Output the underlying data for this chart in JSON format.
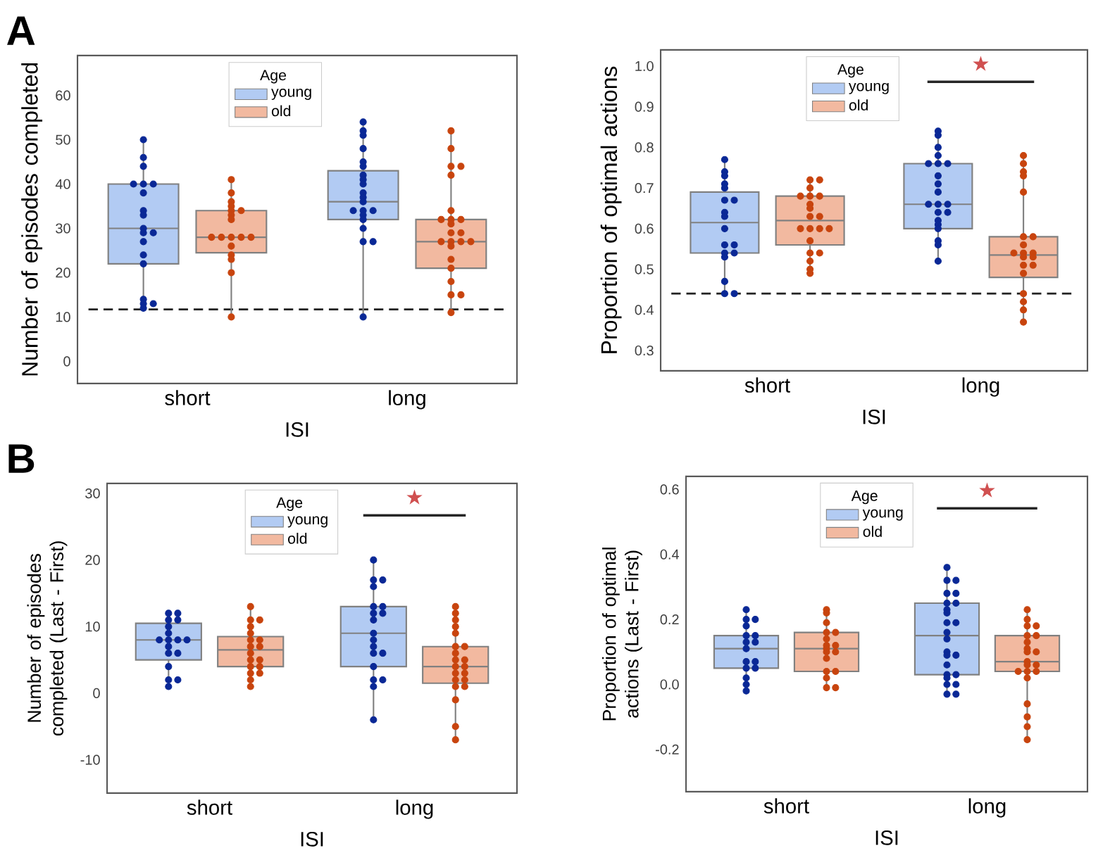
{
  "chart_data": [
    {
      "type": "box",
      "categories": [
        "short",
        "long"
      ],
      "xlabel": "ISI",
      "ylabel": "Number of episodes completed",
      "legend_title": "Age",
      "legend": "top",
      "marker": "circle",
      "ylim": [
        -5,
        69
      ],
      "yticks": [
        0,
        10,
        20,
        30,
        40,
        50,
        60
      ],
      "title": "A",
      "ref_lines": [
        {
          "axis": "y",
          "value": 11.7,
          "line_style": "dashed",
          "color": "#222222"
        }
      ],
      "series": [
        {
          "name": "young",
          "color": "#b2cbf3",
          "boxes": [
            {
              "low": 12,
              "q1": 22,
              "median": 30,
              "q3": 40,
              "high": 50
            },
            {
              "low": 10,
              "q1": 32,
              "median": 36,
              "q3": 43,
              "high": 54
            }
          ]
        },
        {
          "name": "old",
          "color": "#f2b9a0",
          "boxes": [
            {
              "low": 10,
              "q1": 24.5,
              "median": 28,
              "q3": 34,
              "high": 41
            },
            {
              "low": 11,
              "q1": 21,
              "median": 27,
              "q3": 32,
              "high": 52
            }
          ]
        },
        {
          "type": "scatter",
          "color": "#0a2896",
          "x": [
            "short",
            "short",
            "short",
            "short",
            "short",
            "short",
            "short",
            "short",
            "short",
            "short",
            "short",
            "short",
            "short",
            "short",
            "short",
            "short",
            "short",
            "short",
            "short",
            "long",
            "long",
            "long",
            "long",
            "long",
            "long",
            "long",
            "long",
            "long",
            "long",
            "long",
            "long",
            "long",
            "long",
            "long",
            "long",
            "long",
            "long",
            "long",
            "long",
            "long"
          ],
          "values": [
            50,
            46,
            44,
            40,
            40,
            40,
            38,
            34,
            33,
            30,
            29,
            29,
            27,
            24,
            22,
            14,
            13,
            13,
            12,
            54,
            52,
            51,
            48,
            45,
            44,
            42,
            41,
            40,
            38,
            37,
            36,
            34,
            34,
            34,
            33,
            32,
            30,
            27,
            27,
            10
          ]
        },
        {
          "type": "scatter",
          "color": "#c8440e",
          "x": [
            "short",
            "short",
            "short",
            "short",
            "short",
            "short",
            "short",
            "short",
            "short",
            "short",
            "short",
            "short",
            "short",
            "short",
            "short",
            "short",
            "short",
            "short",
            "long",
            "long",
            "long",
            "long",
            "long",
            "long",
            "long",
            "long",
            "long",
            "long",
            "long",
            "long",
            "long",
            "long",
            "long",
            "long",
            "long",
            "long",
            "long",
            "long",
            "long",
            "long",
            "long"
          ],
          "values": [
            41,
            38,
            36,
            35,
            34,
            34,
            33,
            32,
            28,
            28,
            28,
            28,
            28,
            26,
            24,
            23,
            20,
            10,
            52,
            48,
            44,
            44,
            42,
            34,
            32,
            32,
            32,
            31,
            29,
            29,
            27,
            27,
            27,
            27,
            26,
            23,
            21,
            18,
            15,
            15,
            11
          ]
        }
      ]
    },
    {
      "type": "box",
      "categories": [
        "short",
        "long"
      ],
      "xlabel": "ISI",
      "ylabel": "Proportion of optimal actions",
      "legend_title": "Age",
      "legend": "top",
      "marker": "circle",
      "ylim": [
        0.25,
        1.04
      ],
      "yticks": [
        0.3,
        0.4,
        0.5,
        0.6,
        0.7,
        0.8,
        0.9,
        {
          "value": 1.0,
          "label": "1.0"
        }
      ],
      "annotations": [
        "★"
      ],
      "ref_lines": [
        {
          "axis": "y",
          "value": 0.44,
          "line_style": "dashed",
          "color": "#222222"
        }
      ],
      "series": [
        {
          "name": "young",
          "color": "#b2cbf3",
          "boxes": [
            {
              "low": 0.44,
              "q1": 0.54,
              "median": 0.615,
              "q3": 0.69,
              "high": 0.77
            },
            {
              "low": 0.52,
              "q1": 0.6,
              "median": 0.66,
              "q3": 0.76,
              "high": 0.84
            }
          ]
        },
        {
          "name": "old",
          "color": "#f2b9a0",
          "boxes": [
            {
              "low": 0.49,
              "q1": 0.56,
              "median": 0.62,
              "q3": 0.68,
              "high": 0.72
            },
            {
              "low": 0.37,
              "q1": 0.48,
              "median": 0.535,
              "q3": 0.58,
              "high": 0.78
            }
          ]
        },
        {
          "type": "scatter",
          "color": "#0a2896",
          "x": [
            "short",
            "short",
            "short",
            "short",
            "short",
            "short",
            "short",
            "short",
            "short",
            "short",
            "short",
            "short",
            "short",
            "short",
            "short",
            "short",
            "short",
            "short",
            "long",
            "long",
            "long",
            "long",
            "long",
            "long",
            "long",
            "long",
            "long",
            "long",
            "long",
            "long",
            "long",
            "long",
            "long",
            "long",
            "long",
            "long",
            "long",
            "long",
            "long"
          ],
          "values": [
            0.77,
            0.74,
            0.73,
            0.71,
            0.7,
            0.67,
            0.67,
            0.64,
            0.63,
            0.6,
            0.56,
            0.56,
            0.54,
            0.54,
            0.53,
            0.47,
            0.44,
            0.44,
            0.84,
            0.83,
            0.8,
            0.78,
            0.76,
            0.76,
            0.76,
            0.73,
            0.71,
            0.69,
            0.66,
            0.66,
            0.66,
            0.64,
            0.64,
            0.62,
            0.61,
            0.6,
            0.57,
            0.56,
            0.52
          ]
        },
        {
          "type": "scatter",
          "color": "#c8440e",
          "x": [
            "short",
            "short",
            "short",
            "short",
            "short",
            "short",
            "short",
            "short",
            "short",
            "short",
            "short",
            "short",
            "short",
            "short",
            "short",
            "short",
            "short",
            "short",
            "short",
            "short",
            "long",
            "long",
            "long",
            "long",
            "long",
            "long",
            "long",
            "long",
            "long",
            "long",
            "long",
            "long",
            "long",
            "long",
            "long",
            "long",
            "long",
            "long",
            "long",
            "long"
          ],
          "values": [
            0.72,
            0.72,
            0.7,
            0.68,
            0.68,
            0.68,
            0.66,
            0.65,
            0.63,
            0.63,
            0.6,
            0.6,
            0.6,
            0.6,
            0.57,
            0.54,
            0.54,
            0.52,
            0.5,
            0.49,
            0.78,
            0.76,
            0.74,
            0.73,
            0.69,
            0.58,
            0.58,
            0.56,
            0.54,
            0.54,
            0.54,
            0.53,
            0.53,
            0.51,
            0.51,
            0.49,
            0.44,
            0.42,
            0.4,
            0.37
          ]
        }
      ]
    },
    {
      "type": "box",
      "categories": [
        "short",
        "long"
      ],
      "xlabel": "ISI",
      "ylabel": "Number of episodes completed (Last - First)",
      "legend_title": "Age",
      "legend": "top",
      "marker": "circle",
      "ylim": [
        -15,
        31.5
      ],
      "yticks": [
        -10,
        0,
        10,
        20,
        30
      ],
      "title": "B",
      "annotations": [
        "★"
      ],
      "series": [
        {
          "name": "young",
          "color": "#b2cbf3",
          "boxes": [
            {
              "low": 1,
              "q1": 5,
              "median": 8,
              "q3": 10.5,
              "high": 12
            },
            {
              "low": -4,
              "q1": 4,
              "median": 9,
              "q3": 13,
              "high": 20
            }
          ]
        },
        {
          "name": "old",
          "color": "#f2b9a0",
          "boxes": [
            {
              "low": 1,
              "q1": 4,
              "median": 6.5,
              "q3": 8.5,
              "high": 13
            },
            {
              "low": -7,
              "q1": 1.5,
              "median": 4,
              "q3": 7,
              "high": 13
            }
          ]
        },
        {
          "type": "scatter",
          "color": "#0a2896",
          "x": [
            "short",
            "short",
            "short",
            "short",
            "short",
            "short",
            "short",
            "short",
            "short",
            "short",
            "short",
            "short",
            "short",
            "short",
            "short",
            "short",
            "short",
            "long",
            "long",
            "long",
            "long",
            "long",
            "long",
            "long",
            "long",
            "long",
            "long",
            "long",
            "long",
            "long",
            "long",
            "long",
            "long",
            "long",
            "long",
            "long"
          ],
          "values": [
            12,
            12,
            11,
            11,
            10,
            9,
            8,
            8,
            8,
            8,
            7,
            6,
            6,
            4,
            2,
            2,
            1,
            20,
            17,
            17,
            16,
            13,
            13,
            12,
            12,
            11,
            9,
            8,
            7,
            6,
            6,
            4,
            2,
            2,
            1,
            -4
          ]
        },
        {
          "type": "scatter",
          "color": "#c8440e",
          "x": [
            "short",
            "short",
            "short",
            "short",
            "short",
            "short",
            "short",
            "short",
            "short",
            "short",
            "short",
            "short",
            "short",
            "short",
            "short",
            "short",
            "short",
            "short",
            "long",
            "long",
            "long",
            "long",
            "long",
            "long",
            "long",
            "long",
            "long",
            "long",
            "long",
            "long",
            "long",
            "long",
            "long",
            "long",
            "long",
            "long",
            "long",
            "long",
            "long"
          ],
          "values": [
            13,
            11,
            11,
            10,
            9,
            8,
            8,
            7,
            7,
            6,
            5,
            5,
            4,
            4,
            3,
            3,
            2,
            1,
            13,
            12,
            11,
            10,
            9,
            7,
            7,
            6,
            5,
            5,
            4,
            4,
            3,
            3,
            2,
            2,
            1,
            1,
            -1,
            -5,
            -7
          ]
        }
      ]
    },
    {
      "type": "box",
      "categories": [
        "short",
        "long"
      ],
      "xlabel": "ISI",
      "ylabel": "Proportion of optimal actions (Last - First)",
      "legend_title": "Age",
      "legend": "top",
      "marker": "circle",
      "ylim": [
        -0.33,
        0.64
      ],
      "yticks": [
        -0.2,
        {
          "value": 0.0,
          "label": "0.0"
        },
        0.2,
        0.4,
        0.6
      ],
      "annotations": [
        "★"
      ],
      "series": [
        {
          "name": "young",
          "color": "#b2cbf3",
          "boxes": [
            {
              "low": -0.02,
              "q1": 0.05,
              "median": 0.11,
              "q3": 0.15,
              "high": 0.23
            },
            {
              "low": -0.03,
              "q1": 0.03,
              "median": 0.15,
              "q3": 0.25,
              "high": 0.36
            }
          ]
        },
        {
          "name": "old",
          "color": "#f2b9a0",
          "boxes": [
            {
              "low": -0.01,
              "q1": 0.04,
              "median": 0.11,
              "q3": 0.16,
              "high": 0.23
            },
            {
              "low": -0.17,
              "q1": 0.04,
              "median": 0.07,
              "q3": 0.15,
              "high": 0.23
            }
          ]
        },
        {
          "type": "scatter",
          "color": "#0a2896",
          "x": [
            "short",
            "short",
            "short",
            "short",
            "short",
            "short",
            "short",
            "short",
            "short",
            "short",
            "short",
            "short",
            "short",
            "short",
            "short",
            "short",
            "long",
            "long",
            "long",
            "long",
            "long",
            "long",
            "long",
            "long",
            "long",
            "long",
            "long",
            "long",
            "long",
            "long",
            "long",
            "long",
            "long",
            "long",
            "long",
            "long",
            "long",
            "long",
            "long",
            "long"
          ],
          "values": [
            0.23,
            0.2,
            0.2,
            0.18,
            0.15,
            0.15,
            0.13,
            0.13,
            0.11,
            0.07,
            0.07,
            0.05,
            0.05,
            0.02,
            0.0,
            -0.02,
            0.36,
            0.32,
            0.32,
            0.28,
            0.28,
            0.25,
            0.25,
            0.23,
            0.22,
            0.19,
            0.19,
            0.16,
            0.14,
            0.1,
            0.09,
            0.09,
            0.06,
            0.03,
            0.03,
            0.02,
            0.0,
            0.0,
            -0.03,
            -0.03
          ]
        },
        {
          "type": "scatter",
          "color": "#c8440e",
          "x": [
            "short",
            "short",
            "short",
            "short",
            "short",
            "short",
            "short",
            "short",
            "short",
            "short",
            "short",
            "short",
            "short",
            "short",
            "short",
            "short",
            "short",
            "long",
            "long",
            "long",
            "long",
            "long",
            "long",
            "long",
            "long",
            "long",
            "long",
            "long",
            "long",
            "long",
            "long",
            "long",
            "long",
            "long",
            "long",
            "long",
            "long",
            "long"
          ],
          "values": [
            0.23,
            0.22,
            0.19,
            0.16,
            0.16,
            0.14,
            0.12,
            0.12,
            0.11,
            0.1,
            0.1,
            0.08,
            0.04,
            0.04,
            0.02,
            -0.01,
            -0.01,
            0.23,
            0.2,
            0.18,
            0.18,
            0.15,
            0.15,
            0.13,
            0.11,
            0.1,
            0.1,
            0.07,
            0.06,
            0.06,
            0.04,
            0.04,
            0.04,
            0.02,
            -0.06,
            -0.1,
            -0.13,
            -0.17
          ]
        }
      ]
    }
  ]
}
